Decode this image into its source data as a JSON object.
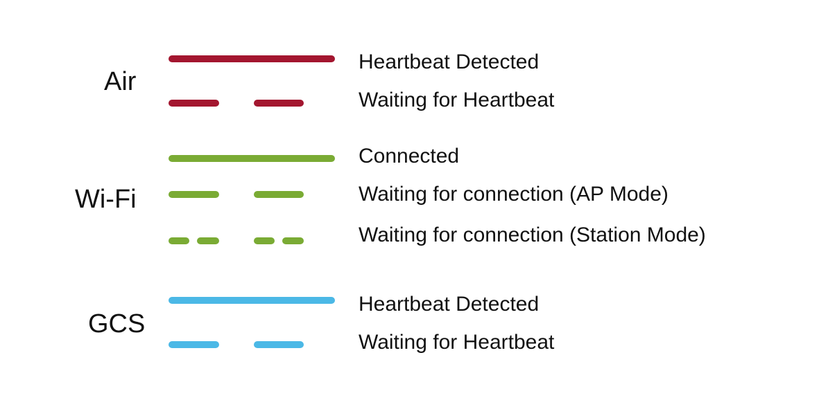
{
  "colors": {
    "air": "#a3162f",
    "wifi": "#7aab34",
    "gcs": "#4bb8e6"
  },
  "groups": [
    {
      "label": "Air",
      "color_key": "air",
      "rows": [
        {
          "pattern": "solid",
          "text": "Heartbeat Detected"
        },
        {
          "pattern": "dashed",
          "text": "Waiting for Heartbeat"
        }
      ]
    },
    {
      "label": "Wi-Fi",
      "color_key": "wifi",
      "rows": [
        {
          "pattern": "solid",
          "text": "Connected"
        },
        {
          "pattern": "dashed",
          "text": "Waiting for connection (AP Mode)"
        },
        {
          "pattern": "double-dashed",
          "text": "Waiting for connection (Station Mode)"
        }
      ]
    },
    {
      "label": "GCS",
      "color_key": "gcs",
      "rows": [
        {
          "pattern": "solid",
          "text": "Heartbeat Detected"
        },
        {
          "pattern": "dashed",
          "text": "Waiting for Heartbeat"
        }
      ]
    }
  ]
}
